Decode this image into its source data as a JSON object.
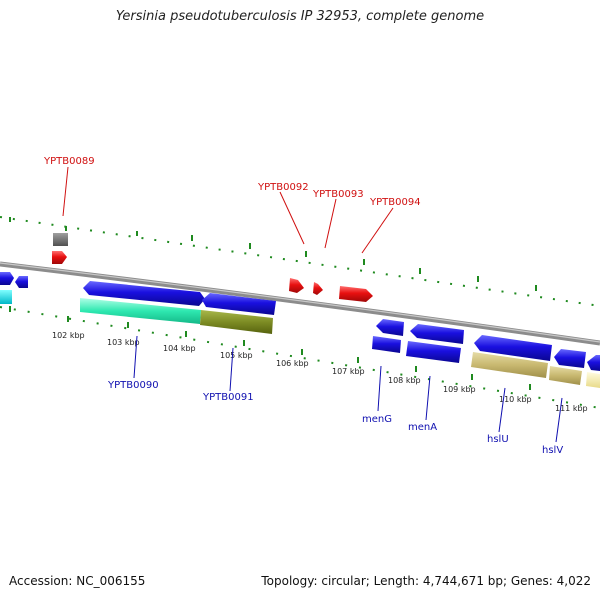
{
  "header": {
    "title": "Yersinia pseudotuberculosis IP 32953, complete genome"
  },
  "footer": {
    "accession": "Accession: NC_006155",
    "topology": "Topology: circular; Length: 4,744,671 bp; Genes: 4,022"
  },
  "colors": {
    "gene_forward": "#1a10e0",
    "gene_highlight": "#e81010",
    "gene_other": "#707070",
    "backbone": "#8c8c8c",
    "gc_tick": "#1f8a1f",
    "label_red": "#d01010",
    "label_blue": "#1010b0",
    "bar_teal": "#2ee8b0",
    "bar_olive": "#7d8c24",
    "bar_khaki": "#c8b870",
    "bar_yellow": "#f0e6a0"
  },
  "scale_ticks": [
    "102 kbp",
    "103 kbp",
    "104 kbp",
    "105 kbp",
    "106 kbp",
    "107 kbp",
    "108 kbp",
    "109 kbp",
    "110 kbp",
    "111 kbp"
  ],
  "gene_labels": {
    "ypb0089": "YPTB0089",
    "ypb0090": "YPTB0090",
    "ypb0091": "YPTB0091",
    "ypb0092": "YPTB0092",
    "ypb0093": "YPTB0093",
    "ypb0094": "YPTB0094",
    "meng": "menG",
    "mena": "menA",
    "hslu": "hslU",
    "hslv": "hslV"
  }
}
